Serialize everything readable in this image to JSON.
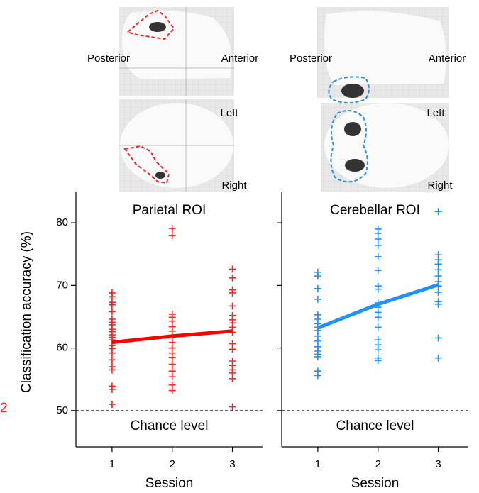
{
  "brain_views": [
    {
      "posterior": "Posterior",
      "anterior": "Anterior",
      "left": "Left",
      "right": "Right"
    },
    {
      "posterior": "Posterior",
      "anterior": "Anterior",
      "left": "Left",
      "right": "Right"
    }
  ],
  "side_mark": "2",
  "chart_data": [
    {
      "type": "scatter",
      "title": "Parietal ROI",
      "ylabel": "Classification accuracy (%)",
      "xlabel": "Session",
      "annotation": "Chance level",
      "chance": 50,
      "xlim": [
        0.4,
        3.5
      ],
      "xticks": [
        1,
        2,
        3
      ],
      "ylim": [
        44.2,
        85
      ],
      "yticks": [
        50,
        60,
        70,
        80
      ],
      "ytick_labels": true,
      "series": [
        {
          "color": "#ff2020",
          "marker": "plus",
          "x": [
            1,
            1,
            1,
            1,
            1,
            1,
            1,
            1,
            1,
            1,
            1,
            1,
            1,
            1,
            1,
            1,
            1,
            1,
            1,
            1,
            1,
            1,
            2,
            2,
            2,
            2,
            2,
            2,
            2,
            2,
            2,
            2,
            2,
            2,
            2,
            2,
            2,
            2,
            2,
            3,
            3,
            3,
            3,
            3,
            3,
            3,
            3,
            3,
            3,
            3,
            3,
            3,
            3,
            3,
            3,
            3,
            3
          ],
          "values": [
            68.8,
            68.2,
            67.3,
            66.9,
            65.8,
            64.6,
            64.1,
            63.7,
            63.0,
            62.6,
            62.1,
            61.7,
            61.3,
            60.4,
            59.9,
            59.2,
            58.1,
            57.0,
            56.5,
            53.9,
            53.4,
            51.0,
            79.1,
            78.0,
            65.4,
            64.9,
            64.3,
            63.4,
            62.7,
            61.8,
            60.9,
            60.0,
            59.2,
            58.5,
            57.4,
            56.3,
            55.4,
            54.1,
            53.2,
            72.6,
            71.2,
            69.3,
            68.8,
            66.7,
            65.2,
            64.5,
            64.0,
            63.3,
            62.5,
            60.7,
            59.8,
            57.9,
            57.2,
            56.5,
            56.0,
            55.1,
            50.6
          ]
        },
        {
          "color": "#ff0000",
          "marker": "line",
          "x": [
            1,
            2,
            3
          ],
          "values": [
            60.9,
            61.9,
            62.7
          ]
        }
      ]
    },
    {
      "type": "scatter",
      "title": "Cerebellar ROI",
      "xlabel": "Session",
      "annotation": "Chance level",
      "chance": 50,
      "xlim": [
        0.4,
        3.5
      ],
      "xticks": [
        1,
        2,
        3
      ],
      "ylim": [
        44.2,
        85
      ],
      "yticks": [
        50,
        60,
        70,
        80
      ],
      "ytick_labels": false,
      "series": [
        {
          "color": "#1e90ff",
          "marker": "plus",
          "x": [
            1,
            1,
            1,
            1,
            1,
            1,
            1,
            1,
            1,
            1,
            1,
            1,
            1,
            1,
            1,
            1,
            1,
            2,
            2,
            2,
            2,
            2,
            2,
            2,
            2,
            2,
            2,
            2,
            2,
            2,
            2,
            2,
            2,
            2,
            2,
            3,
            3,
            3,
            3,
            3,
            3,
            3,
            3,
            3,
            3,
            3,
            3,
            3
          ],
          "values": [
            72.1,
            71.5,
            69.5,
            67.8,
            65.3,
            64.6,
            63.9,
            63.3,
            62.8,
            61.9,
            61.1,
            60.2,
            59.5,
            59.0,
            58.6,
            56.3,
            55.6,
            79.0,
            78.3,
            77.4,
            76.4,
            74.6,
            72.4,
            69.9,
            69.4,
            67.2,
            66.5,
            65.7,
            64.9,
            63.3,
            61.3,
            60.5,
            59.7,
            58.4,
            58.0,
            81.8,
            74.9,
            74.1,
            73.4,
            72.5,
            71.5,
            70.6,
            69.9,
            68.9,
            67.4,
            67.0,
            61.6,
            58.4
          ]
        },
        {
          "color": "#1e90ff",
          "marker": "line",
          "x": [
            1,
            2,
            3
          ],
          "values": [
            63.2,
            67.0,
            70.1
          ]
        }
      ]
    }
  ]
}
